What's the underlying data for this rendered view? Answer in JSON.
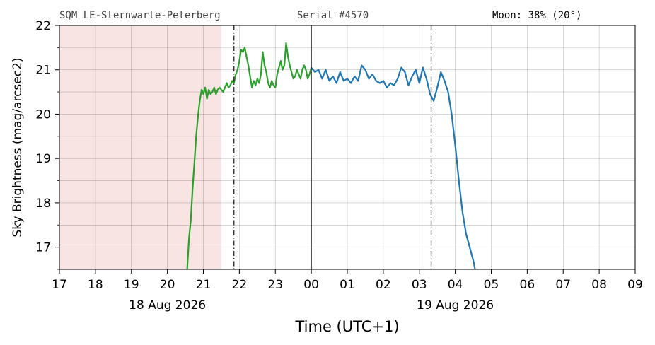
{
  "header": {
    "station": "SQM_LE-Sternwarte-Peterberg",
    "serial": "Serial #4570",
    "moon": "Moon: 38% (20°)"
  },
  "chart_data": {
    "type": "line",
    "title": "",
    "xlabel": "Time (UTC+1)",
    "ylabel": "Sky Brightness (mag/arcsec2)",
    "xlim_hours": [
      17,
      33
    ],
    "ylim": [
      16.5,
      22
    ],
    "ytick_labels": [
      "17",
      "18",
      "19",
      "20",
      "21",
      "22"
    ],
    "xtick_labels": [
      "17",
      "18",
      "19",
      "20",
      "21",
      "22",
      "23",
      "00",
      "01",
      "02",
      "03",
      "04",
      "05",
      "06",
      "07",
      "08",
      "09"
    ],
    "date_labels": [
      {
        "text": "18 Aug 2026",
        "hour": 20
      },
      {
        "text": "19 Aug 2026",
        "hour": 28
      }
    ],
    "grid": true,
    "shaded_region": {
      "from": 17,
      "to": 21.5,
      "color": "#f9e4e4"
    },
    "vlines": [
      {
        "hour": 21.85,
        "style": "dashdot"
      },
      {
        "hour": 24.0,
        "style": "solid"
      },
      {
        "hour": 27.33,
        "style": "dashdot"
      }
    ],
    "series": [
      {
        "color": "#2ca02c",
        "x": [
          20.55,
          20.6,
          20.65,
          20.7,
          20.75,
          20.8,
          20.85,
          20.9,
          20.95,
          21.0,
          21.05,
          21.1,
          21.15,
          21.2,
          21.25,
          21.3,
          21.35,
          21.4,
          21.45,
          21.5,
          21.55,
          21.6,
          21.65,
          21.7,
          21.75,
          21.8,
          21.85,
          21.9,
          21.95,
          22.0,
          22.05,
          22.1,
          22.15,
          22.2,
          22.25,
          22.3,
          22.35,
          22.4,
          22.45,
          22.5,
          22.55,
          22.6,
          22.65,
          22.7,
          22.75,
          22.8,
          22.85,
          22.9,
          22.95,
          23.0,
          23.05,
          23.1,
          23.15,
          23.2,
          23.25,
          23.3,
          23.35,
          23.4,
          23.45,
          23.5,
          23.55,
          23.6,
          23.65,
          23.7,
          23.75,
          23.8,
          23.85,
          23.9,
          23.95,
          24.0
        ],
        "y": [
          16.5,
          17.2,
          17.6,
          18.3,
          18.9,
          19.5,
          19.95,
          20.3,
          20.55,
          20.45,
          20.6,
          20.35,
          20.55,
          20.45,
          20.5,
          20.6,
          20.45,
          20.55,
          20.6,
          20.55,
          20.5,
          20.6,
          20.7,
          20.6,
          20.65,
          20.75,
          20.7,
          20.9,
          21.0,
          21.2,
          21.45,
          21.4,
          21.5,
          21.3,
          21.1,
          20.85,
          20.6,
          20.75,
          20.65,
          20.8,
          20.7,
          20.9,
          21.4,
          21.1,
          20.95,
          20.7,
          20.6,
          20.75,
          20.65,
          20.6,
          20.9,
          21.05,
          21.2,
          21.0,
          21.1,
          21.6,
          21.3,
          21.1,
          20.95,
          20.8,
          20.85,
          21.0,
          20.9,
          20.8,
          21.0,
          21.1,
          21.0,
          20.8,
          20.9,
          21.05
        ]
      },
      {
        "color": "#1f77b4",
        "x": [
          24.0,
          24.1,
          24.2,
          24.3,
          24.4,
          24.5,
          24.6,
          24.7,
          24.8,
          24.9,
          25.0,
          25.1,
          25.2,
          25.3,
          25.4,
          25.5,
          25.6,
          25.7,
          25.8,
          25.9,
          26.0,
          26.1,
          26.2,
          26.3,
          26.4,
          26.5,
          26.6,
          26.7,
          26.8,
          26.9,
          27.0,
          27.1,
          27.2,
          27.3,
          27.4,
          27.5,
          27.6,
          27.7,
          27.8,
          27.9,
          28.0,
          28.1,
          28.2,
          28.3,
          28.4,
          28.5,
          28.55
        ],
        "y": [
          21.05,
          20.95,
          21.0,
          20.8,
          21.0,
          20.75,
          20.85,
          20.7,
          20.95,
          20.75,
          20.8,
          20.7,
          20.85,
          20.75,
          21.1,
          21.0,
          20.8,
          20.9,
          20.75,
          20.7,
          20.75,
          20.6,
          20.7,
          20.65,
          20.8,
          21.05,
          20.95,
          20.65,
          20.85,
          21.0,
          20.7,
          21.05,
          20.8,
          20.45,
          20.3,
          20.6,
          20.95,
          20.75,
          20.5,
          20.0,
          19.3,
          18.5,
          17.8,
          17.3,
          17.0,
          16.7,
          16.5
        ]
      }
    ]
  }
}
